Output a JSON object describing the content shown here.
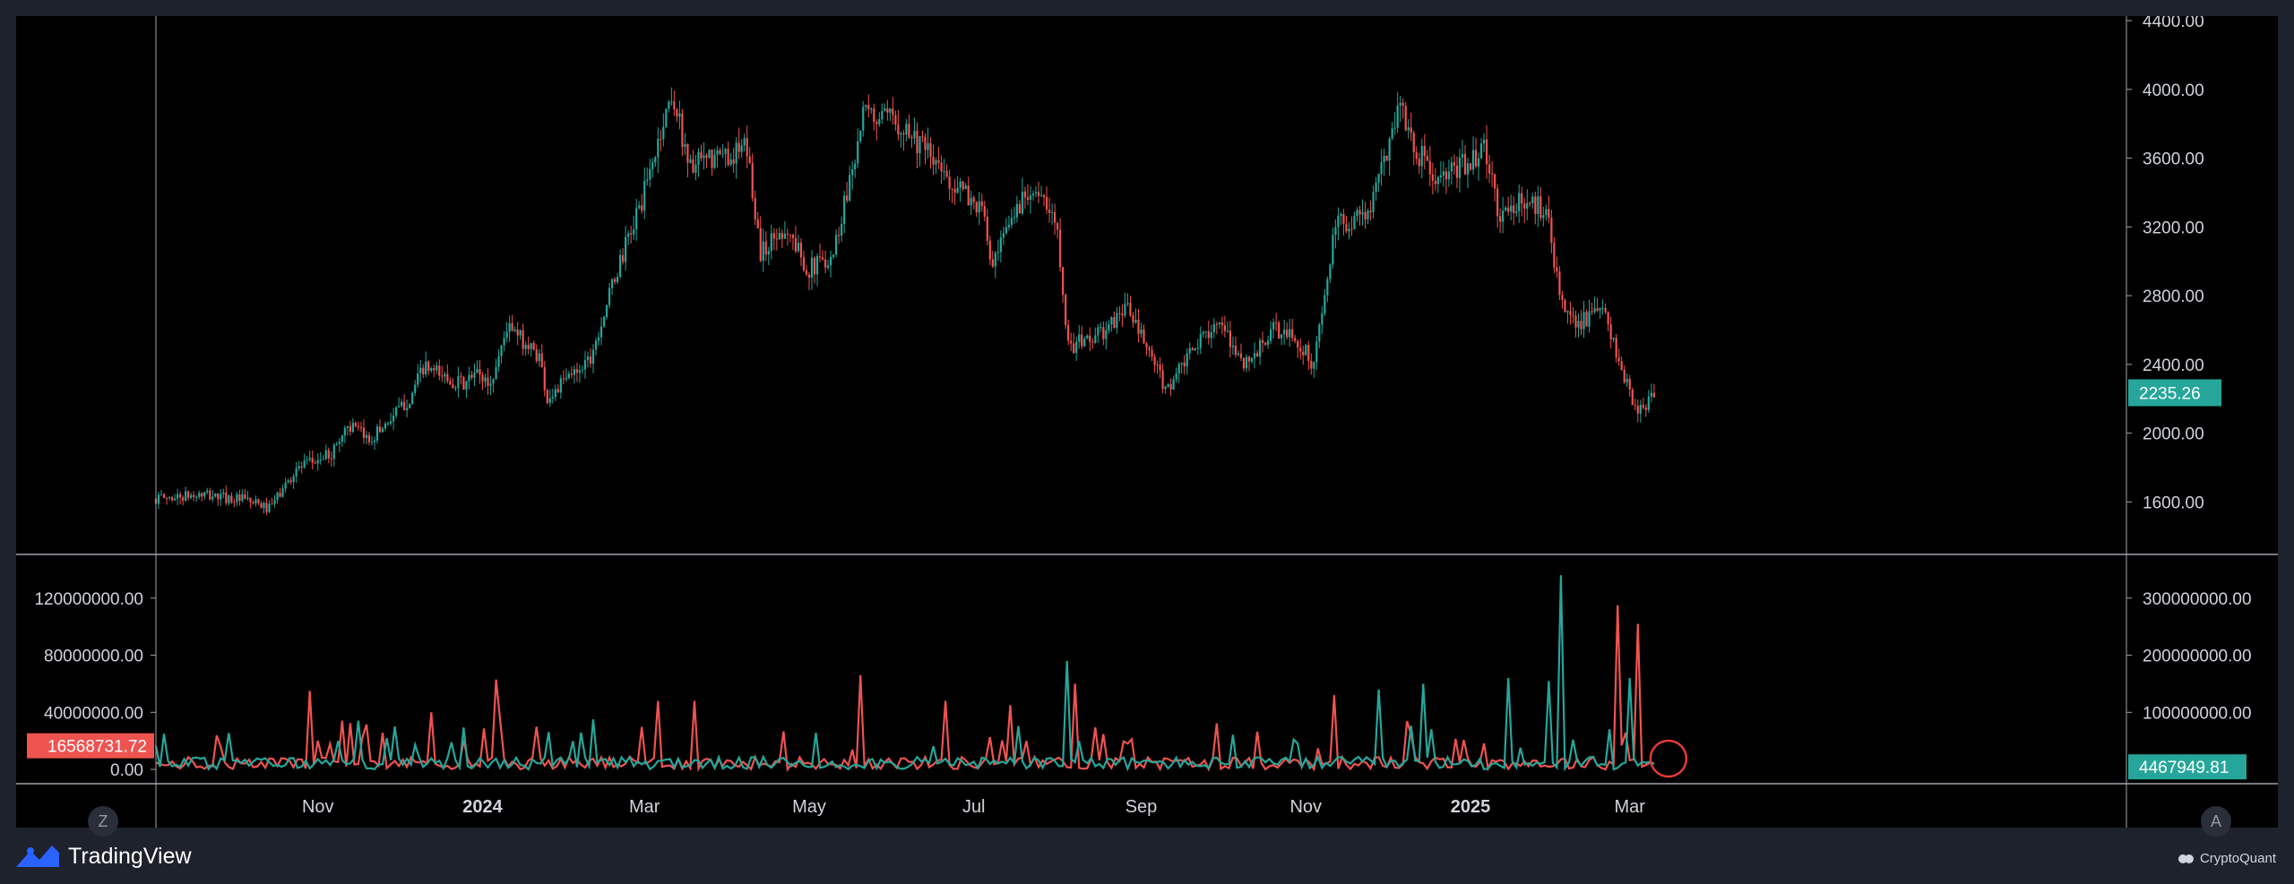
{
  "colors": {
    "up": "#26a69a",
    "down": "#ef5350",
    "background": "#000000",
    "frame": "#1e222d",
    "text": "#d1d4dc",
    "grid_line": "#a0a3ab"
  },
  "branding": {
    "left": "TradingView",
    "right": "CryptoQuant",
    "left_icon": "tradingview-logo-icon",
    "right_icon": "cryptoquant-logo-icon"
  },
  "buttons": {
    "left": "Z",
    "right": "A"
  },
  "chart_data": [
    {
      "type": "candlestick",
      "title": "",
      "price_axis_labels": [
        "4400.00",
        "4000.00",
        "3600.00",
        "3200.00",
        "2800.00",
        "2400.00",
        "2000.00",
        "1600.00"
      ],
      "ylim": [
        1300,
        4400
      ],
      "last_price_label": "2235.26",
      "x_tick_labels": [
        "Nov",
        "2024",
        "Mar",
        "May",
        "Jul",
        "Sep",
        "Nov",
        "2025",
        "Mar"
      ],
      "x_tick_dates": [
        "2023-11-01",
        "2024-01-01",
        "2024-03-01",
        "2024-05-01",
        "2024-07-01",
        "2024-09-01",
        "2024-11-01",
        "2025-01-01",
        "2025-03-01"
      ],
      "xlim": [
        "2023-09-02",
        "2025-09-01"
      ],
      "series": [
        {
          "date_range": [
            "2023-09-02",
            "2025-03-12"
          ],
          "close_path": [
            [
              "2023-09-02",
              1620
            ],
            [
              "2023-09-20",
              1640
            ],
            [
              "2023-10-05",
              1610
            ],
            [
              "2023-10-14",
              1560
            ],
            [
              "2023-10-24",
              1790
            ],
            [
              "2023-11-06",
              1880
            ],
            [
              "2023-11-12",
              2050
            ],
            [
              "2023-11-20",
              1960
            ],
            [
              "2023-12-05",
              2200
            ],
            [
              "2023-12-10",
              2380
            ],
            [
              "2023-12-25",
              2280
            ],
            [
              "2023-12-30",
              2350
            ],
            [
              "2024-01-04",
              2280
            ],
            [
              "2024-01-10",
              2620
            ],
            [
              "2024-01-22",
              2450
            ],
            [
              "2024-01-25",
              2200
            ],
            [
              "2024-02-10",
              2450
            ],
            [
              "2024-02-20",
              2950
            ],
            [
              "2024-03-01",
              3400
            ],
            [
              "2024-03-11",
              3980
            ],
            [
              "2024-03-18",
              3550
            ],
            [
              "2024-03-28",
              3600
            ],
            [
              "2024-04-08",
              3650
            ],
            [
              "2024-04-13",
              3050
            ],
            [
              "2024-04-22",
              3200
            ],
            [
              "2024-05-01",
              2950
            ],
            [
              "2024-05-10",
              3050
            ],
            [
              "2024-05-21",
              3850
            ],
            [
              "2024-06-05",
              3800
            ],
            [
              "2024-06-20",
              3500
            ],
            [
              "2024-07-04",
              3300
            ],
            [
              "2024-07-08",
              2950
            ],
            [
              "2024-07-15",
              3250
            ],
            [
              "2024-07-22",
              3450
            ],
            [
              "2024-08-01",
              3200
            ],
            [
              "2024-08-05",
              2500
            ],
            [
              "2024-08-20",
              2600
            ],
            [
              "2024-08-26",
              2750
            ],
            [
              "2024-09-06",
              2400
            ],
            [
              "2024-09-10",
              2250
            ],
            [
              "2024-09-28",
              2650
            ],
            [
              "2024-10-10",
              2400
            ],
            [
              "2024-10-20",
              2600
            ],
            [
              "2024-10-28",
              2550
            ],
            [
              "2024-11-04",
              2400
            ],
            [
              "2024-11-12",
              3200
            ],
            [
              "2024-11-25",
              3300
            ],
            [
              "2024-12-06",
              3950
            ],
            [
              "2024-12-10",
              3700
            ],
            [
              "2024-12-20",
              3450
            ],
            [
              "2025-01-06",
              3650
            ],
            [
              "2025-01-12",
              3250
            ],
            [
              "2025-01-20",
              3350
            ],
            [
              "2025-01-30",
              3300
            ],
            [
              "2025-02-03",
              2750
            ],
            [
              "2025-02-10",
              2650
            ],
            [
              "2025-02-20",
              2700
            ],
            [
              "2025-02-25",
              2400
            ],
            [
              "2025-03-04",
              2100
            ],
            [
              "2025-03-10",
              2235.26
            ]
          ]
        }
      ]
    },
    {
      "type": "line",
      "title": "",
      "left_axis_labels": [
        "120000000.00",
        "80000000.00",
        "40000000.00",
        "0.00"
      ],
      "left_ylim": [
        -10000000,
        150000000
      ],
      "right_axis_labels": [
        "300000000.00",
        "200000000.00",
        "100000000.00"
      ],
      "right_ylim": [
        -25000000,
        375000000
      ],
      "series": [
        {
          "color": "#ef5350",
          "axis": "left",
          "last_value_label": "16568731.72",
          "peaks": [
            [
              "2023-10-29",
              55000000
            ],
            [
              "2023-12-13",
              40000000
            ],
            [
              "2024-01-06",
              63000000
            ],
            [
              "2024-03-06",
              48000000
            ],
            [
              "2024-03-20",
              48000000
            ],
            [
              "2024-05-20",
              66000000
            ],
            [
              "2024-06-20",
              48000000
            ],
            [
              "2024-07-15",
              45000000
            ],
            [
              "2024-08-08",
              60000000
            ],
            [
              "2024-11-12",
              52000000
            ],
            [
              "2025-02-25",
              115000000
            ],
            [
              "2025-03-04",
              102000000
            ]
          ]
        },
        {
          "color": "#26a69a",
          "axis": "right",
          "last_value_label": "4467949.81",
          "peaks": [
            [
              "2024-08-05",
              190000000
            ],
            [
              "2024-11-28",
              140000000
            ],
            [
              "2024-12-15",
              150000000
            ],
            [
              "2025-01-15",
              160000000
            ],
            [
              "2025-01-30",
              155000000
            ],
            [
              "2025-02-03",
              340000000
            ],
            [
              "2025-03-01",
              160000000
            ]
          ]
        }
      ]
    }
  ]
}
